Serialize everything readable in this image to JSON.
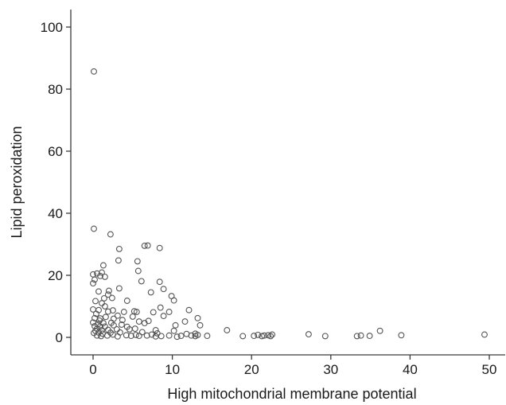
{
  "chart_data": {
    "type": "scatter",
    "title": "",
    "xlabel": "High mitochondrial membrane potential",
    "ylabel": "Lipid peroxidation",
    "xlim": [
      -3,
      52
    ],
    "ylim": [
      -5,
      106
    ],
    "xticks": [
      0,
      10,
      20,
      30,
      40,
      50
    ],
    "yticks": [
      0,
      20,
      40,
      60,
      80,
      100
    ],
    "grid": false,
    "legend": "none",
    "marker_color": "#555555",
    "points": [
      [
        0.1,
        85.7
      ],
      [
        0.1,
        35.0
      ],
      [
        2.2,
        33.2
      ],
      [
        6.5,
        29.5
      ],
      [
        6.9,
        29.6
      ],
      [
        8.4,
        28.8
      ],
      [
        3.3,
        28.5
      ],
      [
        3.2,
        24.8
      ],
      [
        5.6,
        24.5
      ],
      [
        1.3,
        23.2
      ],
      [
        5.7,
        21.4
      ],
      [
        0.0,
        20.3
      ],
      [
        0.5,
        20.6
      ],
      [
        0.9,
        19.8
      ],
      [
        1.1,
        20.9
      ],
      [
        0.2,
        18.6
      ],
      [
        0.0,
        17.4
      ],
      [
        1.5,
        19.5
      ],
      [
        6.1,
        18.1
      ],
      [
        8.4,
        17.9
      ],
      [
        3.3,
        15.8
      ],
      [
        2.0,
        15.0
      ],
      [
        7.3,
        14.5
      ],
      [
        0.7,
        14.8
      ],
      [
        1.9,
        13.8
      ],
      [
        8.9,
        15.6
      ],
      [
        1.4,
        12.6
      ],
      [
        2.4,
        12.7
      ],
      [
        9.9,
        13.3
      ],
      [
        0.3,
        11.7
      ],
      [
        1.1,
        11.0
      ],
      [
        4.3,
        11.8
      ],
      [
        10.2,
        11.9
      ],
      [
        1.5,
        10.0
      ],
      [
        8.5,
        9.6
      ],
      [
        0.0,
        9.0
      ],
      [
        0.7,
        8.8
      ],
      [
        1.9,
        8.3
      ],
      [
        2.5,
        8.7
      ],
      [
        3.9,
        8.2
      ],
      [
        5.2,
        8.4
      ],
      [
        5.5,
        8.2
      ],
      [
        7.6,
        8.1
      ],
      [
        9.6,
        8.2
      ],
      [
        12.1,
        8.8
      ],
      [
        0.4,
        7.6
      ],
      [
        3.1,
        7.0
      ],
      [
        5.0,
        6.7
      ],
      [
        0.2,
        6.2
      ],
      [
        0.9,
        6.1
      ],
      [
        1.6,
        6.6
      ],
      [
        2.6,
        6.0
      ],
      [
        13.2,
        6.2
      ],
      [
        0.8,
        5.4
      ],
      [
        3.7,
        5.6
      ],
      [
        7.0,
        5.3
      ],
      [
        8.9,
        6.9
      ],
      [
        0.0,
        4.8
      ],
      [
        0.6,
        4.2
      ],
      [
        1.3,
        4.6
      ],
      [
        2.3,
        4.7
      ],
      [
        3.6,
        4.1
      ],
      [
        5.8,
        5.1
      ],
      [
        6.5,
        4.6
      ],
      [
        11.6,
        5.1
      ],
      [
        0.2,
        3.6
      ],
      [
        0.9,
        3.5
      ],
      [
        1.5,
        3.5
      ],
      [
        2.6,
        3.9
      ],
      [
        4.3,
        3.4
      ],
      [
        10.4,
        3.9
      ],
      [
        13.5,
        3.9
      ],
      [
        0.5,
        2.8
      ],
      [
        0.3,
        2.1
      ],
      [
        1.1,
        2.3
      ],
      [
        1.9,
        2.4
      ],
      [
        3.0,
        2.6
      ],
      [
        4.6,
        2.6
      ],
      [
        5.3,
        2.8
      ],
      [
        7.9,
        2.3
      ],
      [
        10.2,
        2.1
      ],
      [
        16.9,
        2.3
      ],
      [
        36.2,
        2.1
      ],
      [
        0.1,
        1.4
      ],
      [
        0.7,
        1.6
      ],
      [
        1.2,
        1.2
      ],
      [
        2.2,
        1.5
      ],
      [
        3.4,
        1.6
      ],
      [
        6.2,
        1.7
      ],
      [
        8.1,
        1.3
      ],
      [
        11.8,
        1.1
      ],
      [
        12.9,
        1.2
      ],
      [
        0.5,
        0.6
      ],
      [
        1.0,
        0.4
      ],
      [
        1.8,
        0.6
      ],
      [
        2.5,
        0.9
      ],
      [
        3.1,
        0.3
      ],
      [
        4.2,
        0.7
      ],
      [
        4.8,
        0.5
      ],
      [
        5.4,
        0.8
      ],
      [
        5.8,
        0.5
      ],
      [
        6.8,
        0.6
      ],
      [
        7.4,
        0.9
      ],
      [
        7.9,
        0.3
      ],
      [
        8.6,
        0.4
      ],
      [
        9.6,
        0.6
      ],
      [
        10.6,
        0.2
      ],
      [
        11.1,
        0.5
      ],
      [
        12.4,
        0.6
      ],
      [
        12.9,
        0.4
      ],
      [
        13.2,
        0.8
      ],
      [
        14.4,
        0.5
      ],
      [
        18.9,
        0.4
      ],
      [
        20.3,
        0.5
      ],
      [
        20.8,
        0.8
      ],
      [
        21.3,
        0.4
      ],
      [
        21.6,
        0.6
      ],
      [
        22.1,
        0.7
      ],
      [
        22.6,
        0.9
      ],
      [
        22.4,
        0.4
      ],
      [
        27.2,
        1.0
      ],
      [
        29.3,
        0.4
      ],
      [
        33.3,
        0.4
      ],
      [
        33.8,
        0.6
      ],
      [
        34.9,
        0.5
      ],
      [
        38.9,
        0.7
      ],
      [
        49.4,
        0.9
      ]
    ]
  }
}
